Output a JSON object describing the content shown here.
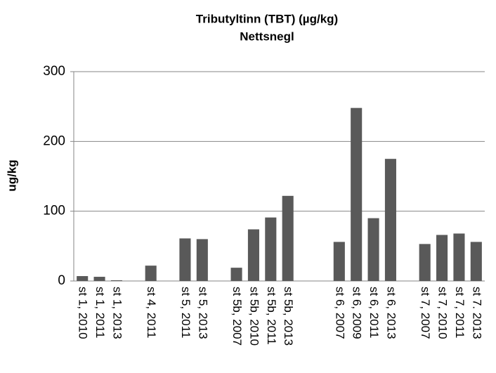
{
  "chart_data": {
    "type": "bar",
    "title": "Tributyltinn (TBT) (µg/kg)",
    "subtitle": "Nettsnegl",
    "y_label": "ug/kg",
    "categories": [
      "st 1, 2010",
      "st 1, 2011",
      "st 1, 2013",
      null,
      "st 4, 2011",
      null,
      "st 5, 2011",
      "st 5, 2013",
      null,
      "st 5b, 2007",
      "st 5b, 2010",
      "st 5b, 2011",
      "st 5b, 2013",
      null,
      null,
      "st 6, 2007",
      "st 6, 2009",
      "st 6, 2011",
      "st 6, 2013",
      null,
      "st 7, 2007",
      "st 7, 2010",
      "st 7, 2011",
      "st 7. 2013"
    ],
    "values": [
      7,
      6,
      1,
      null,
      22,
      null,
      61,
      60,
      null,
      19,
      74,
      91,
      122,
      null,
      null,
      56,
      248,
      90,
      175,
      null,
      53,
      66,
      68,
      56
    ],
    "color": "#595959",
    "ylim": [
      0,
      300
    ],
    "yticks": [
      0,
      100,
      200,
      300
    ],
    "grid": true
  }
}
